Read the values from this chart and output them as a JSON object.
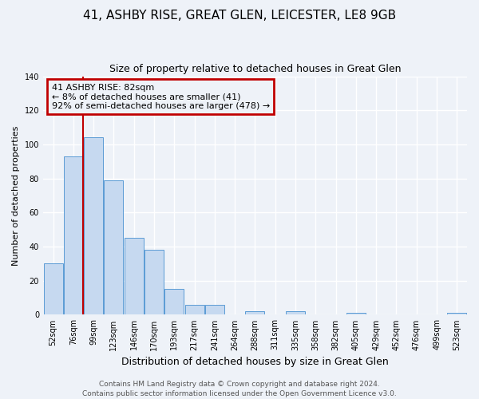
{
  "title1": "41, ASHBY RISE, GREAT GLEN, LEICESTER, LE8 9GB",
  "title2": "Size of property relative to detached houses in Great Glen",
  "xlabel": "Distribution of detached houses by size in Great Glen",
  "ylabel": "Number of detached properties",
  "bar_labels": [
    "52sqm",
    "76sqm",
    "99sqm",
    "123sqm",
    "146sqm",
    "170sqm",
    "193sqm",
    "217sqm",
    "241sqm",
    "264sqm",
    "288sqm",
    "311sqm",
    "335sqm",
    "358sqm",
    "382sqm",
    "405sqm",
    "429sqm",
    "452sqm",
    "476sqm",
    "499sqm",
    "523sqm"
  ],
  "bar_values": [
    30,
    93,
    104,
    79,
    45,
    38,
    15,
    6,
    6,
    0,
    2,
    0,
    2,
    0,
    0,
    1,
    0,
    0,
    0,
    0,
    1
  ],
  "bar_color": "#c6d9f0",
  "bar_edge_color": "#5b9bd5",
  "vline_bar_index": 1,
  "vline_color": "#c00000",
  "annotation_title": "41 ASHBY RISE: 82sqm",
  "annotation_line1": "← 8% of detached houses are smaller (41)",
  "annotation_line2": "92% of semi-detached houses are larger (478) →",
  "annotation_box_color": "#c00000",
  "ylim": [
    0,
    140
  ],
  "yticks": [
    0,
    20,
    40,
    60,
    80,
    100,
    120,
    140
  ],
  "footer1": "Contains HM Land Registry data © Crown copyright and database right 2024.",
  "footer2": "Contains public sector information licensed under the Open Government Licence v3.0.",
  "bg_color": "#eef2f8",
  "grid_color": "#ffffff",
  "title1_fontsize": 11,
  "title2_fontsize": 9,
  "xlabel_fontsize": 9,
  "ylabel_fontsize": 8,
  "tick_fontsize": 7,
  "footer_fontsize": 6.5,
  "ann_fontsize": 8
}
